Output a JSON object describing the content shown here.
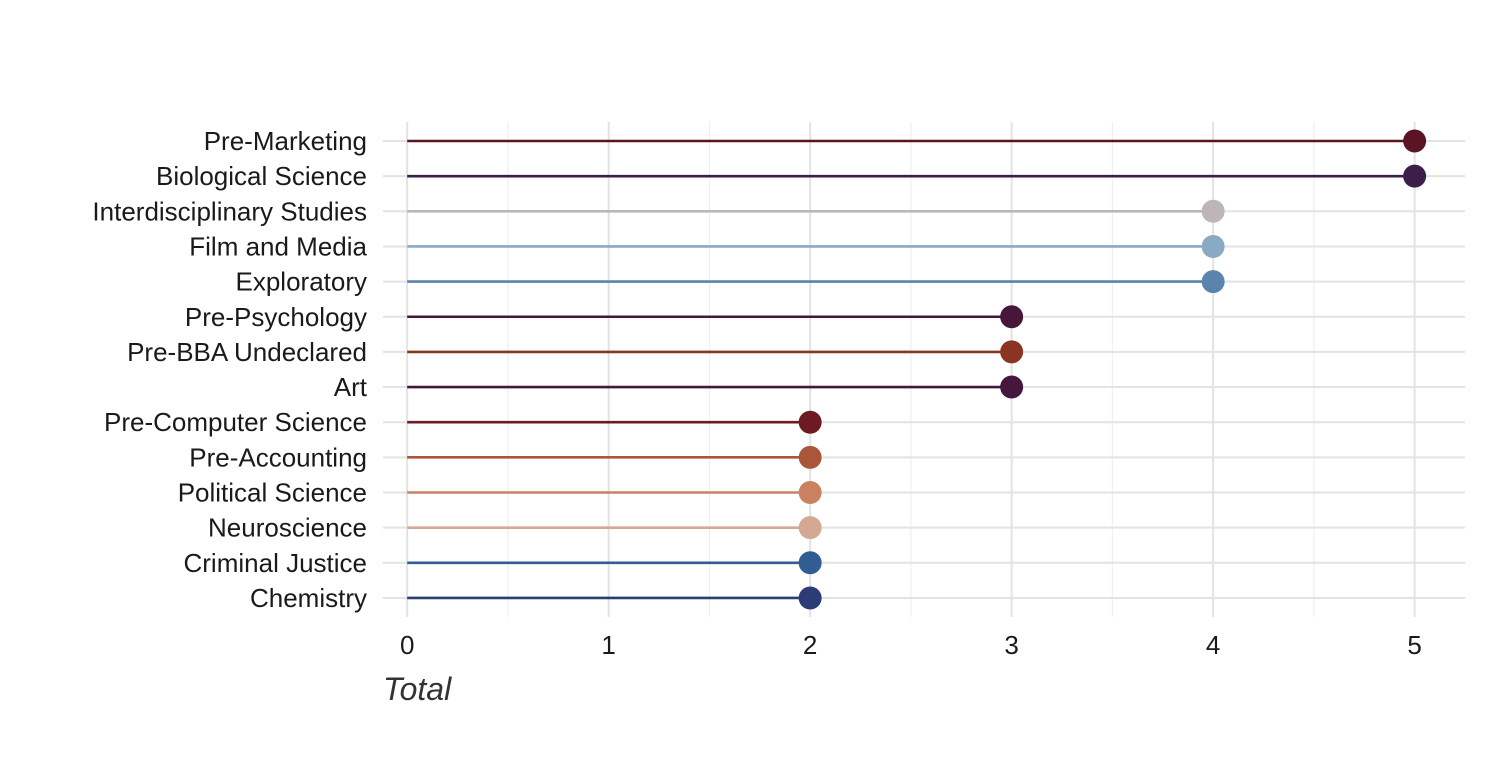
{
  "chart_data": {
    "type": "lollipop",
    "orientation": "horizontal",
    "xlabel": "Total",
    "ylabel": "",
    "xlim": [
      -0.12,
      5.25
    ],
    "xticks": [
      0,
      1,
      2,
      3,
      4,
      5
    ],
    "xtick_labels": [
      "0",
      "1",
      "2",
      "3",
      "4",
      "5"
    ],
    "grid": true,
    "legend": "none",
    "categories": [
      "Pre-Marketing",
      "Biological Science",
      "Interdisciplinary Studies",
      "Film and Media",
      "Exploratory",
      "Pre-Psychology",
      "Pre-BBA Undeclared",
      "Art",
      "Pre-Computer Science",
      "Pre-Accounting",
      "Political Science",
      "Neuroscience",
      "Criminal Justice",
      "Chemistry"
    ],
    "values": [
      5,
      5,
      4,
      4,
      4,
      3,
      3,
      3,
      2,
      2,
      2,
      2,
      2,
      2
    ],
    "colors": [
      "#5a1424",
      "#3b1f48",
      "#bdb5b8",
      "#8aa9c2",
      "#5a83ad",
      "#46173a",
      "#8a3422",
      "#45173c",
      "#6e1a22",
      "#a95738",
      "#c98162",
      "#d4a893",
      "#325d94",
      "#2c3c74"
    ]
  }
}
